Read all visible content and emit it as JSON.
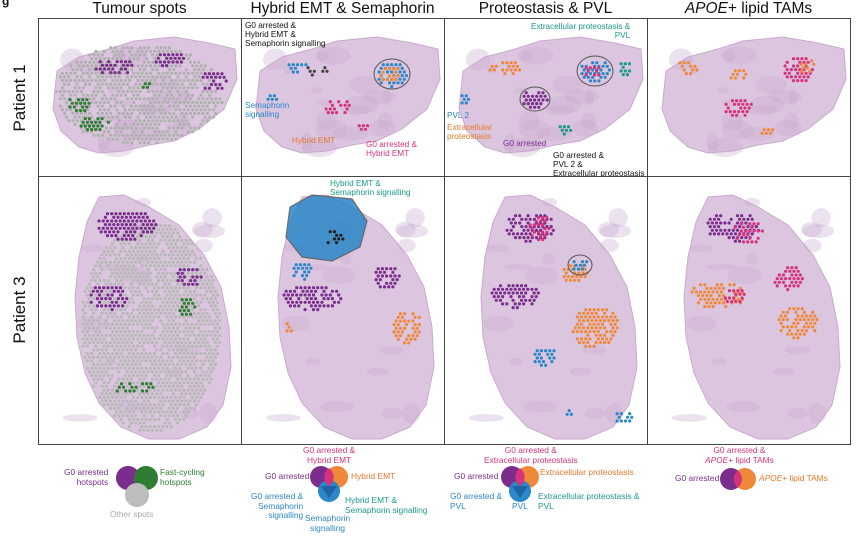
{
  "panel_letter": "g",
  "columns": {
    "c1": {
      "title": "Tumour spots"
    },
    "c2": {
      "title": "Hybrid EMT & Semaphorin"
    },
    "c3": {
      "title": "Proteostasis & PVL"
    },
    "c4": {
      "title_italic": "APOE",
      "title_rest": "+ lipid TAMs"
    }
  },
  "rows": {
    "r1": {
      "label": "Patient 1"
    },
    "r2": {
      "label": "Patient 3"
    }
  },
  "annotations": {
    "p1c2_top": "G0 arrested &\nHybrid EMT &\nSemaphorin signalling",
    "p1c2_sema": "Semaphorin\nsignalling",
    "p1c2_hemt": "Hybrid EMT",
    "p1c2_g0h": "G0 arrested &\nHybrid EMT",
    "p1c3_ecp_pvl": "Extracellular proteostasis &\nPVL",
    "p1c3_pvl2": "PVL 2",
    "p1c3_ecp": "Extracellular\nproteostasis",
    "p1c3_g0": "G0 arrested",
    "p1c3_g0pvl": "G0 arrested &\nPVL 2 &\nExtracellular proteostasis",
    "p3c2_hemt_sema": "Hybrid EMT &\nSemaphorin signalling"
  },
  "legends": {
    "l1": {
      "g0": "G0 arrested\nhotspots",
      "fast": "Fast-cycling\nhotspots",
      "other": "Other spots"
    },
    "l2": {
      "top": "G0 arrested &\nHybrid EMT",
      "left": "G0 arrested",
      "right": "Hybrid EMT",
      "lowleft": "G0 arrested &\nSemaphorin\nsignalling",
      "lowright": "Hybrid EMT &\nSemaphorin signalling",
      "bottom": "Semaphorin\nsignalling"
    },
    "l3": {
      "top": "G0 arrested &\nExtracellular proteostasis",
      "left": "G0 arrested",
      "right": "Extracellular proteostasis",
      "lowleft": "G0 arrested &\nPVL",
      "lowright": "Extracellular proteostasis &\nPVL",
      "bottom": "PVL"
    },
    "l4": {
      "top": "G0 arrested &",
      "top2_italic": "APOE",
      "top2_rest": "+ lipid TAMs",
      "left": "G0 arrested",
      "right_italic": "APOE",
      "right_rest": "+ lipid TAMs"
    }
  },
  "colors": {
    "purple": "#7b2d8e",
    "green": "#2e7d32",
    "grey": "#b9b9b9",
    "orange": "#f0883a",
    "blue": "#2a87c8",
    "magenta": "#d6337a",
    "teal": "#1a9a8a",
    "tissue": "#dcc6df",
    "tissue_dark": "#c9aacd"
  }
}
